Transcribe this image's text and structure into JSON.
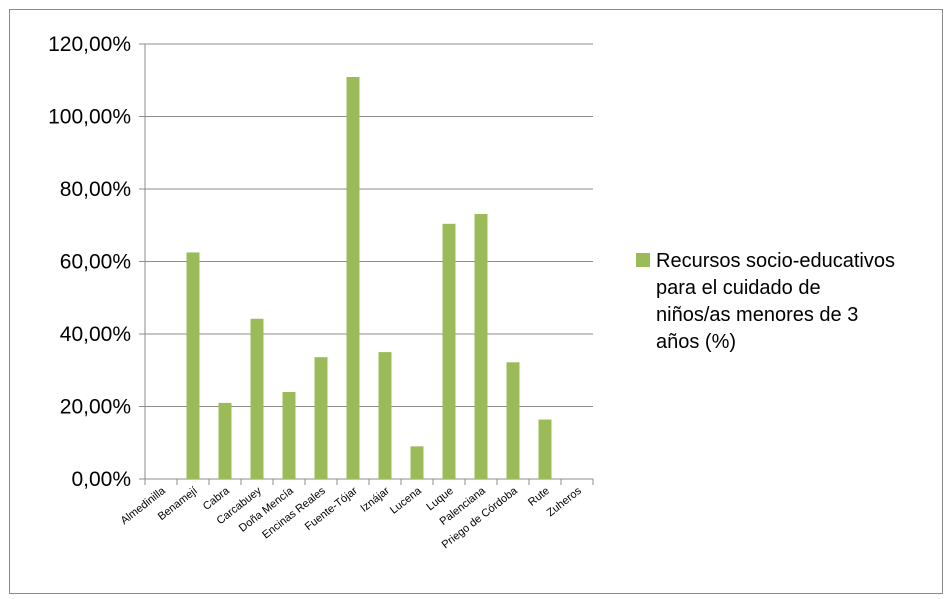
{
  "chart_data": {
    "type": "bar",
    "categories": [
      "Almedinilla",
      "Benamejí",
      "Cabra",
      "Carcabuey",
      "Doña Mencía",
      "Encinas Reales",
      "Fuente-Tójar",
      "Iznájar",
      "Lucena",
      "Luque",
      "Palenciana",
      "Priego de Córdoba",
      "Rute",
      "Zuheros"
    ],
    "series": [
      {
        "name": "Recursos socio-educativos para el cuidado de niños/as menores de 3 años (%)",
        "values": [
          0,
          62.5,
          21,
          44.2,
          24,
          33.6,
          110.9,
          35,
          9,
          70.4,
          73.1,
          32.2,
          16.4,
          0
        ],
        "color": "#9bbb59"
      }
    ],
    "yticks": [
      "0,00%",
      "20,00%",
      "40,00%",
      "60,00%",
      "80,00%",
      "100,00%",
      "120,00%"
    ],
    "ylim": [
      0,
      120
    ],
    "grid": true,
    "legend_position": "right",
    "legend_lines": [
      "Recursos socio-educativos",
      "para el cuidado de",
      "niños/as menores de 3",
      "años (%)"
    ],
    "title": "",
    "xlabel": "",
    "ylabel": ""
  }
}
